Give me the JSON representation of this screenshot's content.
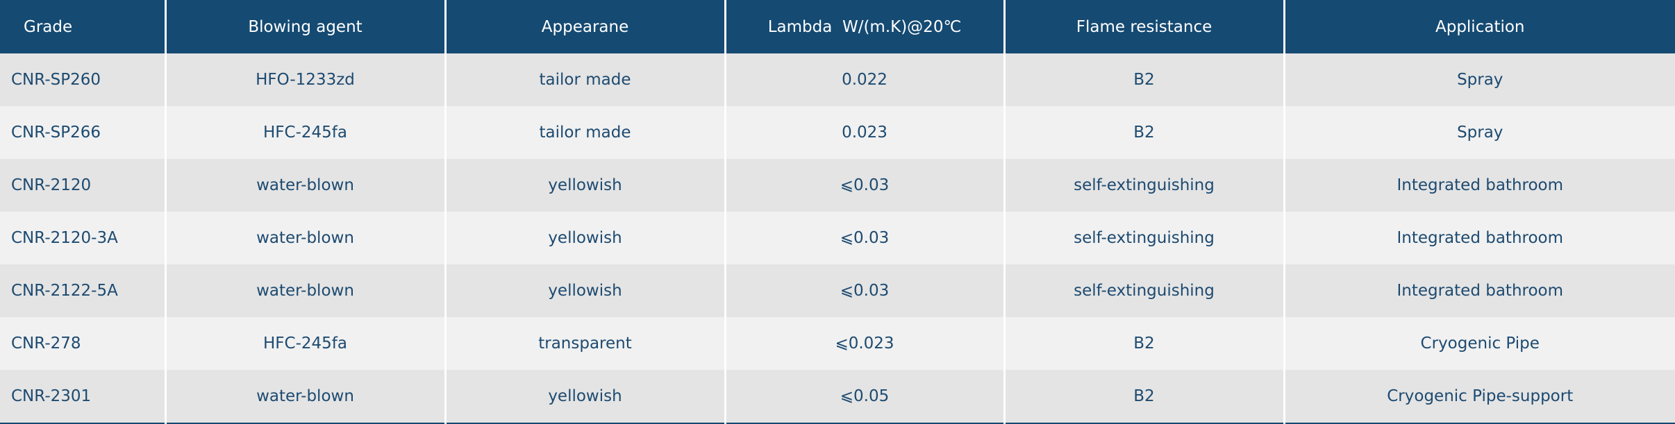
{
  "table": {
    "header": [
      "Grade",
      "Blowing agent",
      "Appearane",
      "Lambda  W/(m.K)@20℃",
      "Flame resistance",
      "Application"
    ],
    "rows": [
      [
        "CNR-SP260",
        "HFO-1233zd",
        "tailor made",
        "0.022",
        "B2",
        "Spray"
      ],
      [
        "CNR-SP266",
        "HFC-245fa",
        "tailor made",
        "0.023",
        "B2",
        "Spray"
      ],
      [
        "CNR-2120",
        "water-blown",
        "yellowish",
        "⩽0.03",
        "self-extinguishing",
        "Integrated bathroom"
      ],
      [
        "CNR-2120-3A",
        "water-blown",
        "yellowish",
        "⩽0.03",
        "self-extinguishing",
        "Integrated bathroom"
      ],
      [
        "CNR-2122-5A",
        "water-blown",
        "yellowish",
        "⩽0.03",
        "self-extinguishing",
        "Integrated bathroom"
      ],
      [
        "CNR-278",
        "HFC-245fa",
        "transparent",
        "⩽0.023",
        "B2",
        "Cryogenic Pipe"
      ],
      [
        "CNR-2301",
        "water-blown",
        "yellowish",
        "⩽0.05",
        "B2",
        "Cryogenic Pipe-support"
      ]
    ]
  }
}
